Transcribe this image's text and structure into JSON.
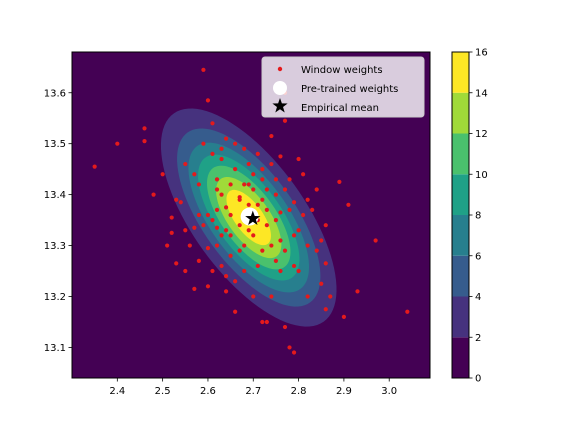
{
  "chart_data": {
    "type": "contour+scatter",
    "xlim": [
      2.3,
      3.09
    ],
    "ylim": [
      13.04,
      13.68
    ],
    "xticks": [
      2.4,
      2.5,
      2.6,
      2.7,
      2.8,
      2.9,
      3.0
    ],
    "yticks": [
      13.1,
      13.2,
      13.3,
      13.4,
      13.5,
      13.6
    ],
    "xtick_labels": [
      "2.4",
      "2.5",
      "2.6",
      "2.7",
      "2.8",
      "2.9",
      "3.0"
    ],
    "ytick_labels": [
      "13.1",
      "13.2",
      "13.3",
      "13.4",
      "13.5",
      "13.6"
    ],
    "colorbar": {
      "range": [
        0,
        16
      ],
      "ticks": [
        0,
        2,
        4,
        6,
        8,
        10,
        12,
        14,
        16
      ],
      "tick_labels": [
        "0",
        "2",
        "4",
        "6",
        "8",
        "10",
        "12",
        "14",
        "16"
      ],
      "levels": [
        0,
        2,
        4,
        6,
        8,
        10,
        12,
        14,
        16
      ],
      "colors": [
        "#440154",
        "#46327e",
        "#365c8d",
        "#277f8e",
        "#1fa187",
        "#4ac16d",
        "#a0da39",
        "#fde725"
      ]
    },
    "density": {
      "center": [
        2.69,
        13.355
      ],
      "peak": 16,
      "sigma_x": 0.095,
      "sigma_y": 0.105,
      "correlation": -0.66
    },
    "series": [
      {
        "name": "Window weights",
        "marker": "dot",
        "color": "#e41a1c",
        "points": [
          [
            2.35,
            13.455
          ],
          [
            2.4,
            13.5
          ],
          [
            2.46,
            13.53
          ],
          [
            2.46,
            13.505
          ],
          [
            2.48,
            13.4
          ],
          [
            2.5,
            13.44
          ],
          [
            2.51,
            13.3
          ],
          [
            2.52,
            13.325
          ],
          [
            2.52,
            13.355
          ],
          [
            2.53,
            13.39
          ],
          [
            2.53,
            13.265
          ],
          [
            2.54,
            13.385
          ],
          [
            2.55,
            13.46
          ],
          [
            2.55,
            13.33
          ],
          [
            2.55,
            13.25
          ],
          [
            2.56,
            13.3
          ],
          [
            2.57,
            13.335
          ],
          [
            2.57,
            13.215
          ],
          [
            2.58,
            13.36
          ],
          [
            2.58,
            13.42
          ],
          [
            2.58,
            13.27
          ],
          [
            2.59,
            13.645
          ],
          [
            2.59,
            13.5
          ],
          [
            2.59,
            13.34
          ],
          [
            2.6,
            13.585
          ],
          [
            2.6,
            13.36
          ],
          [
            2.6,
            13.295
          ],
          [
            2.6,
            13.22
          ],
          [
            2.61,
            13.48
          ],
          [
            2.61,
            13.54
          ],
          [
            2.61,
            13.35
          ],
          [
            2.61,
            13.25
          ],
          [
            2.62,
            13.43
          ],
          [
            2.62,
            13.335
          ],
          [
            2.62,
            13.37
          ],
          [
            2.62,
            13.3
          ],
          [
            2.63,
            13.49
          ],
          [
            2.63,
            13.4
          ],
          [
            2.63,
            13.32
          ],
          [
            2.63,
            13.26
          ],
          [
            2.64,
            13.51
          ],
          [
            2.64,
            13.375
          ],
          [
            2.64,
            13.33
          ],
          [
            2.64,
            13.24
          ],
          [
            2.64,
            13.21
          ],
          [
            2.65,
            13.42
          ],
          [
            2.65,
            13.36
          ],
          [
            2.65,
            13.28
          ],
          [
            2.66,
            13.5
          ],
          [
            2.66,
            13.45
          ],
          [
            2.66,
            13.23
          ],
          [
            2.66,
            13.17
          ],
          [
            2.67,
            13.395
          ],
          [
            2.67,
            13.34
          ],
          [
            2.67,
            13.29
          ],
          [
            2.68,
            13.49
          ],
          [
            2.68,
            13.42
          ],
          [
            2.68,
            13.25
          ],
          [
            2.68,
            13.3
          ],
          [
            2.69,
            13.38
          ],
          [
            2.69,
            13.33
          ],
          [
            2.69,
            13.46
          ],
          [
            2.7,
            13.44
          ],
          [
            2.7,
            13.2
          ],
          [
            2.7,
            13.41
          ],
          [
            2.71,
            13.35
          ],
          [
            2.71,
            13.48
          ],
          [
            2.71,
            13.38
          ],
          [
            2.72,
            13.45
          ],
          [
            2.72,
            13.29
          ],
          [
            2.72,
            13.15
          ],
          [
            2.72,
            13.43
          ],
          [
            2.73,
            13.34
          ],
          [
            2.73,
            13.41
          ],
          [
            2.73,
            13.15
          ],
          [
            2.74,
            13.515
          ],
          [
            2.74,
            13.46
          ],
          [
            2.74,
            13.3
          ],
          [
            2.74,
            13.2
          ],
          [
            2.75,
            13.4
          ],
          [
            2.75,
            13.35
          ],
          [
            2.75,
            13.27
          ],
          [
            2.76,
            13.475
          ],
          [
            2.76,
            13.365
          ],
          [
            2.76,
            13.25
          ],
          [
            2.77,
            13.6
          ],
          [
            2.77,
            13.545
          ],
          [
            2.77,
            13.41
          ],
          [
            2.77,
            13.29
          ],
          [
            2.77,
            13.14
          ],
          [
            2.78,
            13.43
          ],
          [
            2.78,
            13.37
          ],
          [
            2.78,
            13.1
          ],
          [
            2.79,
            13.385
          ],
          [
            2.79,
            13.26
          ],
          [
            2.79,
            13.09
          ],
          [
            2.8,
            13.47
          ],
          [
            2.8,
            13.33
          ],
          [
            2.8,
            13.25
          ],
          [
            2.81,
            13.44
          ],
          [
            2.81,
            13.36
          ],
          [
            2.82,
            13.39
          ],
          [
            2.82,
            13.3
          ],
          [
            2.82,
            13.2
          ],
          [
            2.83,
            13.37
          ],
          [
            2.84,
            13.41
          ],
          [
            2.84,
            13.29
          ],
          [
            2.85,
            13.31
          ],
          [
            2.85,
            13.225
          ],
          [
            2.86,
            13.34
          ],
          [
            2.86,
            13.265
          ],
          [
            2.86,
            13.175
          ],
          [
            2.87,
            13.2
          ],
          [
            2.89,
            13.425
          ],
          [
            2.9,
            13.16
          ],
          [
            2.91,
            13.38
          ],
          [
            2.93,
            13.21
          ],
          [
            2.97,
            13.31
          ],
          [
            3.04,
            13.17
          ],
          [
            2.57,
            13.44
          ],
          [
            2.63,
            13.47
          ],
          [
            2.67,
            13.39
          ],
          [
            2.69,
            13.42
          ],
          [
            2.7,
            13.32
          ],
          [
            2.71,
            13.26
          ],
          [
            2.73,
            13.37
          ],
          [
            2.75,
            13.43
          ],
          [
            2.76,
            13.31
          ],
          [
            2.79,
            13.32
          ],
          [
            2.65,
            13.32
          ],
          [
            2.68,
            13.36
          ],
          [
            2.62,
            13.41
          ],
          [
            2.72,
            13.39
          ]
        ]
      },
      {
        "name": "Pre-trained weights",
        "marker": "circle",
        "color": "#ffffff",
        "points": [
          [
            2.692,
            13.357
          ]
        ]
      },
      {
        "name": "Empirical mean",
        "marker": "star",
        "color": "#000000",
        "points": [
          [
            2.699,
            13.353
          ]
        ]
      }
    ],
    "legend": {
      "placement": "upper right",
      "entries": [
        "Window weights",
        "Pre-trained weights",
        "Empirical mean"
      ]
    }
  }
}
